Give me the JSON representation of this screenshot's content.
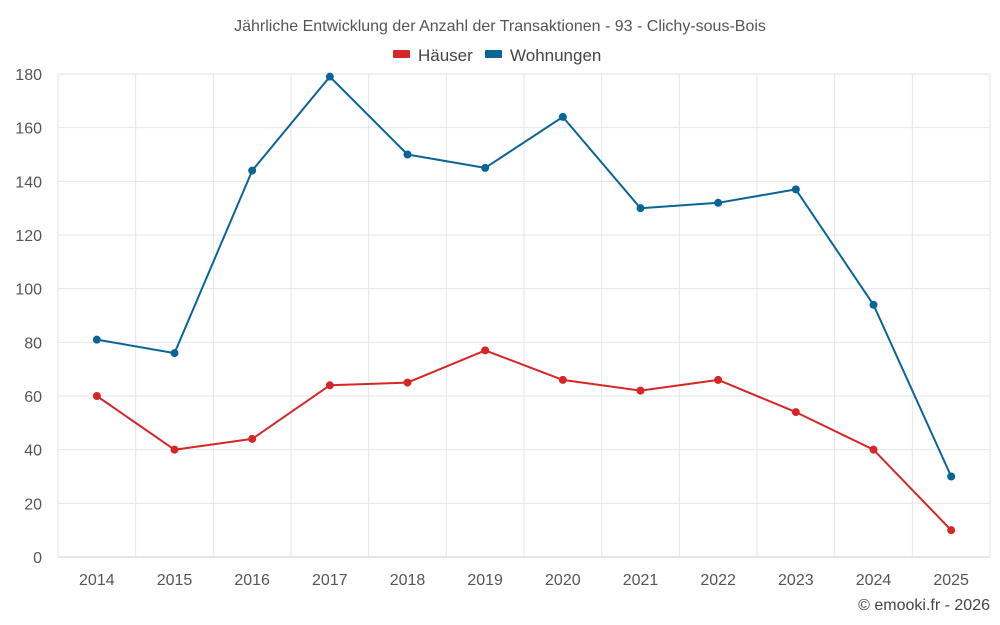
{
  "chart_data": {
    "type": "line",
    "title": "Jährliche Entwicklung der Anzahl der Transaktionen - 93 - Clichy-sous-Bois",
    "categories": [
      "2014",
      "2015",
      "2016",
      "2017",
      "2018",
      "2019",
      "2020",
      "2021",
      "2022",
      "2023",
      "2024",
      "2025"
    ],
    "series": [
      {
        "name": "Häuser",
        "color": "#d62728",
        "values": [
          60,
          40,
          44,
          64,
          65,
          77,
          66,
          62,
          66,
          54,
          40,
          10
        ]
      },
      {
        "name": "Wohnungen",
        "color": "#0b6496",
        "values": [
          81,
          76,
          144,
          179,
          150,
          145,
          164,
          130,
          132,
          137,
          94,
          30
        ]
      }
    ],
    "ylim": [
      0,
      180
    ],
    "yticks": [
      0,
      20,
      40,
      60,
      80,
      100,
      120,
      140,
      160,
      180
    ],
    "xlabel": "",
    "ylabel": "",
    "grid": true,
    "legend_position": "top-center"
  },
  "credit": "© emooki.fr - 2026"
}
